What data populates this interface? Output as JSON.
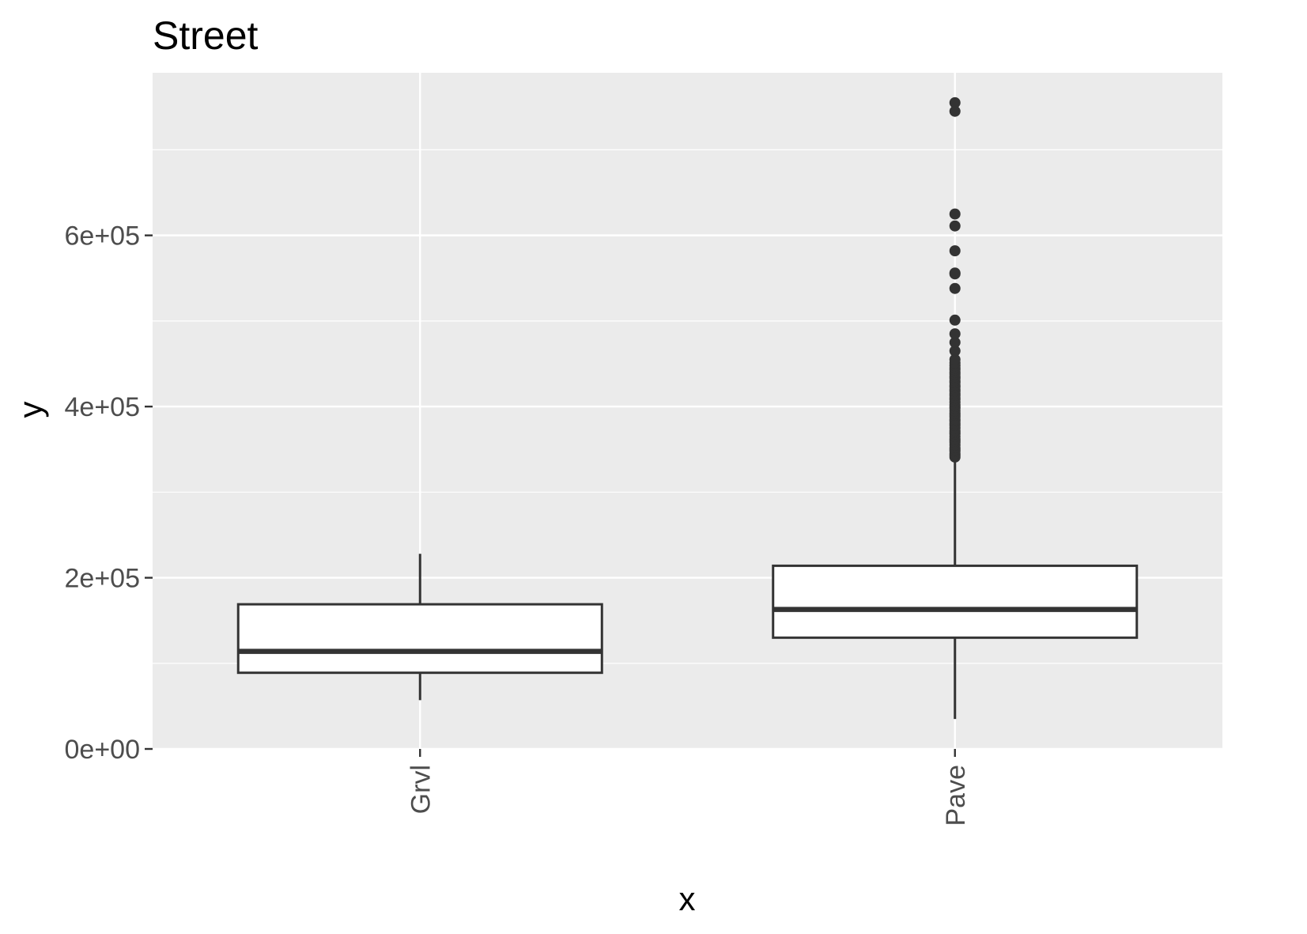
{
  "chart_data": {
    "type": "boxplot",
    "title": "Street",
    "xlabel": "x",
    "ylabel": "y",
    "categories": [
      "Grvl",
      "Pave"
    ],
    "y_ticks": [
      {
        "value": 0,
        "label": "0e+00"
      },
      {
        "value": 200000,
        "label": "2e+05"
      },
      {
        "value": 400000,
        "label": "4e+05"
      },
      {
        "value": 600000,
        "label": "6e+05"
      }
    ],
    "y_minor_ticks": [
      100000,
      300000,
      500000,
      700000
    ],
    "ylim": [
      0,
      790000
    ],
    "grid": true,
    "panel_background": "#ebebeb",
    "grid_color": "#ffffff",
    "box_fill": "#ffffff",
    "box_stroke": "#333333",
    "boxes": [
      {
        "category": "Grvl",
        "whisker_low": 57000,
        "q1": 89000,
        "median": 114000,
        "q3": 169000,
        "whisker_high": 228000,
        "outliers": []
      },
      {
        "category": "Pave",
        "whisker_low": 35000,
        "q1": 130000,
        "median": 163000,
        "q3": 214000,
        "whisker_high": 340000,
        "outliers": [
          341000,
          343000,
          345000,
          348000,
          350000,
          352000,
          355000,
          358000,
          360000,
          362000,
          365000,
          368000,
          370000,
          372000,
          375000,
          378000,
          380000,
          383000,
          385000,
          388000,
          390000,
          392000,
          395000,
          398000,
          400000,
          402000,
          405000,
          408000,
          410000,
          413000,
          415000,
          418000,
          420000,
          423000,
          425000,
          428000,
          430000,
          433000,
          435000,
          438000,
          440000,
          443000,
          445000,
          448000,
          451000,
          455000,
          465000,
          475000,
          485000,
          501000,
          538000,
          555000,
          556000,
          582000,
          611000,
          625000,
          745000,
          755000
        ]
      }
    ]
  }
}
